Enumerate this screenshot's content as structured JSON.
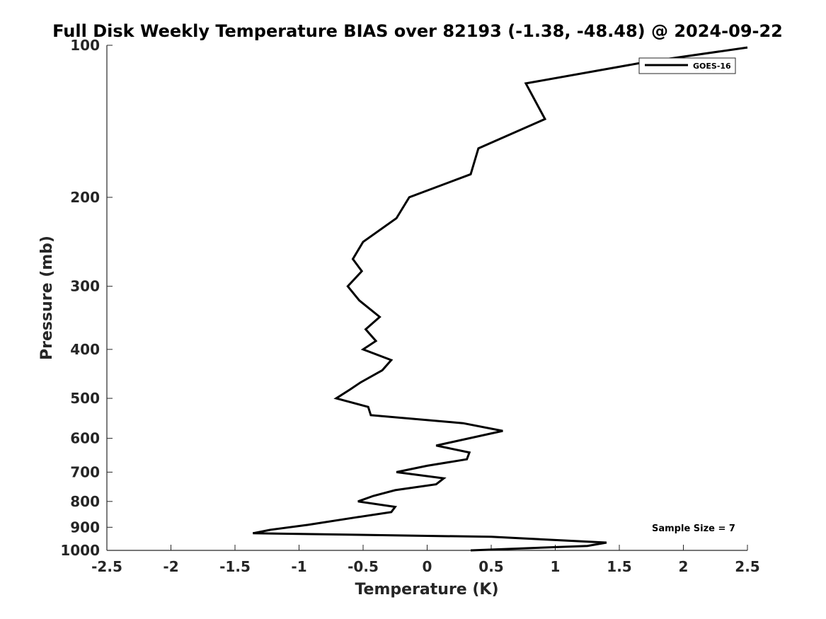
{
  "chart_data": {
    "type": "line",
    "title": "Full Disk Weekly Temperature BIAS over 82193 (-1.38, -48.48) @ 2024-09-22",
    "xlabel": "Temperature (K)",
    "ylabel": "Pressure (mb)",
    "xlim": [
      -2.5,
      2.5
    ],
    "ylim": [
      100,
      1000
    ],
    "y_scale": "log",
    "y_reversed": true,
    "grid": false,
    "legend_position": "top-right",
    "x_ticks": [
      "-2.5",
      "-2",
      "-1.5",
      "-1",
      "-0.5",
      "0",
      "0.5",
      "1",
      "1.5",
      "2",
      "2.5"
    ],
    "x_tick_values": [
      -2.5,
      -2,
      -1.5,
      -1,
      -0.5,
      0,
      0.5,
      1,
      1.5,
      2,
      2.5
    ],
    "y_ticks": [
      "100",
      "200",
      "300",
      "400",
      "500",
      "600",
      "700",
      "800",
      "900",
      "1000"
    ],
    "y_tick_values": [
      100,
      200,
      300,
      400,
      500,
      600,
      700,
      800,
      900,
      1000
    ],
    "annotation": "Sample Size = 7",
    "series": [
      {
        "name": "GOES-16",
        "color": "#000000",
        "points": [
          {
            "t": 2.5,
            "p": 101
          },
          {
            "t": 1.7,
            "p": 108
          },
          {
            "t": 0.77,
            "p": 119
          },
          {
            "t": 0.92,
            "p": 140
          },
          {
            "t": 0.4,
            "p": 160
          },
          {
            "t": 0.34,
            "p": 180
          },
          {
            "t": -0.14,
            "p": 200
          },
          {
            "t": -0.24,
            "p": 220
          },
          {
            "t": -0.5,
            "p": 245
          },
          {
            "t": -0.58,
            "p": 265
          },
          {
            "t": -0.51,
            "p": 280
          },
          {
            "t": -0.62,
            "p": 300
          },
          {
            "t": -0.53,
            "p": 320
          },
          {
            "t": -0.37,
            "p": 345
          },
          {
            "t": -0.48,
            "p": 365
          },
          {
            "t": -0.4,
            "p": 385
          },
          {
            "t": -0.5,
            "p": 400
          },
          {
            "t": -0.28,
            "p": 420
          },
          {
            "t": -0.35,
            "p": 440
          },
          {
            "t": -0.52,
            "p": 465
          },
          {
            "t": -0.6,
            "p": 480
          },
          {
            "t": -0.71,
            "p": 500
          },
          {
            "t": -0.46,
            "p": 520
          },
          {
            "t": -0.44,
            "p": 540
          },
          {
            "t": 0.28,
            "p": 560
          },
          {
            "t": 0.59,
            "p": 580
          },
          {
            "t": 0.07,
            "p": 620
          },
          {
            "t": 0.33,
            "p": 640
          },
          {
            "t": 0.31,
            "p": 660
          },
          {
            "t": 0.0,
            "p": 680
          },
          {
            "t": -0.24,
            "p": 700
          },
          {
            "t": 0.13,
            "p": 720
          },
          {
            "t": 0.07,
            "p": 740
          },
          {
            "t": -0.25,
            "p": 760
          },
          {
            "t": -0.42,
            "p": 780
          },
          {
            "t": -0.54,
            "p": 800
          },
          {
            "t": -0.25,
            "p": 820
          },
          {
            "t": -0.28,
            "p": 840
          },
          {
            "t": -0.55,
            "p": 860
          },
          {
            "t": -0.93,
            "p": 890
          },
          {
            "t": -1.22,
            "p": 910
          },
          {
            "t": -1.36,
            "p": 925
          },
          {
            "t": 0.5,
            "p": 940
          },
          {
            "t": 1.4,
            "p": 965
          },
          {
            "t": 1.25,
            "p": 980
          },
          {
            "t": 0.34,
            "p": 1000
          }
        ]
      }
    ]
  }
}
